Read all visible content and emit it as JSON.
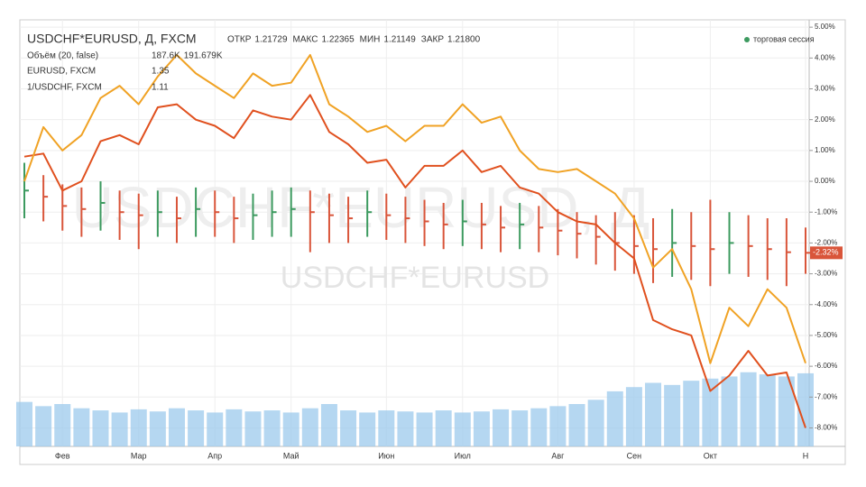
{
  "header": {
    "title": "USDCHF*EURUSD, Д, FXCM",
    "ohlc": [
      {
        "label": "ОТКР",
        "value": "1.21729"
      },
      {
        "label": "МАКС",
        "value": "1.22365"
      },
      {
        "label": "МИН",
        "value": "1.21149"
      },
      {
        "label": "ЗАКР",
        "value": "1.21800"
      }
    ],
    "session": "торговая сессия"
  },
  "chart_data": {
    "type": "ohlc",
    "categories": [
      null,
      null,
      "Фев",
      null,
      null,
      null,
      "Мар",
      null,
      null,
      null,
      "Апр",
      null,
      null,
      null,
      "Май",
      null,
      null,
      null,
      null,
      "Июн",
      null,
      null,
      null,
      "Июл",
      null,
      null,
      null,
      null,
      "Авг",
      null,
      null,
      null,
      "Сен",
      null,
      null,
      null,
      "Окт",
      null,
      null,
      null,
      null,
      "Н"
    ],
    "ylim": [
      -8.6,
      5.15
    ],
    "yticks": [
      {
        "value": 5,
        "label": "5.00%"
      },
      {
        "value": 4,
        "label": "4.00%"
      },
      {
        "value": 3,
        "label": "3.00%"
      },
      {
        "value": 2,
        "label": "2.00%"
      },
      {
        "value": 1,
        "label": "1.00%"
      },
      {
        "value": 0,
        "label": "0.00%"
      },
      {
        "value": -1,
        "label": "-1.00%"
      },
      {
        "value": -2,
        "label": "-2.00%"
      },
      {
        "value": -3,
        "label": "-3.00%"
      },
      {
        "value": -4,
        "label": "-4.00%"
      },
      {
        "value": -5,
        "label": "-5.00%"
      },
      {
        "value": -6,
        "label": "-6.00%"
      },
      {
        "value": -7,
        "label": "-7.00%"
      },
      {
        "value": -8,
        "label": "-8.00%"
      }
    ],
    "grid": true,
    "main": {
      "name": "USDCHF*EURUSD",
      "up_color": "#3c9a5f",
      "down_color": "#d9553a",
      "close": [
        -0.3,
        -0.5,
        -0.8,
        -0.9,
        -0.7,
        -1.0,
        -1.1,
        -1.0,
        -1.2,
        -0.9,
        -1.0,
        -1.2,
        -1.1,
        -1.0,
        -0.9,
        -1.0,
        -1.1,
        -1.2,
        -1.0,
        -1.1,
        -1.2,
        -1.3,
        -1.4,
        -1.3,
        -1.4,
        -1.5,
        -1.4,
        -1.5,
        -1.6,
        -1.7,
        -1.8,
        -2.0,
        -2.1,
        -2.2,
        -2.0,
        -2.1,
        -2.2,
        -2.0,
        -2.1,
        -2.2,
        -2.3,
        -2.32
      ],
      "high": [
        0.6,
        0.2,
        -0.1,
        -0.2,
        0.0,
        -0.3,
        -0.4,
        -0.3,
        -0.5,
        -0.2,
        -0.3,
        -0.5,
        -0.4,
        -0.3,
        -0.2,
        -0.3,
        -0.4,
        -0.5,
        -0.3,
        -0.4,
        -0.5,
        -0.6,
        -0.7,
        -0.6,
        -0.7,
        -0.8,
        -0.7,
        -0.8,
        -0.9,
        -1.0,
        -1.1,
        -1.0,
        -1.1,
        -1.2,
        -0.9,
        -1.0,
        -0.6,
        -1.0,
        -1.1,
        -1.2,
        -1.2,
        -1.5
      ],
      "low": [
        -1.2,
        -1.3,
        -1.6,
        -1.8,
        -1.6,
        -1.9,
        -2.2,
        -1.8,
        -2.0,
        -1.8,
        -1.8,
        -2.0,
        -1.9,
        -1.8,
        -1.8,
        -2.3,
        -2.0,
        -2.0,
        -1.8,
        -1.9,
        -2.0,
        -2.1,
        -2.2,
        -2.1,
        -2.2,
        -2.3,
        -2.2,
        -2.3,
        -2.4,
        -2.5,
        -2.7,
        -2.9,
        -3.0,
        -3.3,
        -3.1,
        -3.2,
        -3.4,
        -3.0,
        -3.1,
        -3.2,
        -3.4,
        -3.0
      ],
      "last": {
        "value": -2.32,
        "label": "-2.32%"
      }
    },
    "series": [
      {
        "name": "EURUSD, FXCM",
        "color": "#e0501e",
        "last_price": 1.35,
        "values": [
          0.8,
          0.9,
          -0.3,
          0.0,
          1.3,
          1.5,
          1.2,
          2.4,
          2.5,
          2.0,
          1.8,
          1.4,
          2.3,
          2.1,
          2.0,
          2.8,
          1.6,
          1.2,
          0.6,
          0.7,
          -0.2,
          0.5,
          0.5,
          1.0,
          0.3,
          0.5,
          -0.2,
          -0.4,
          -1.0,
          -1.3,
          -1.4,
          -2.0,
          -2.5,
          -4.5,
          -4.8,
          -5.0,
          -6.8,
          -6.3,
          -5.5,
          -6.3,
          -6.2,
          -8.0
        ]
      },
      {
        "name": "1/USDCHF, FXCM",
        "color": "#f0a224",
        "last_price": 1.11,
        "values": [
          0.0,
          1.76,
          1.0,
          1.5,
          2.7,
          3.1,
          2.5,
          3.4,
          4.1,
          3.5,
          3.1,
          2.7,
          3.5,
          3.1,
          3.2,
          4.1,
          2.5,
          2.1,
          1.6,
          1.8,
          1.3,
          1.8,
          1.8,
          2.5,
          1.9,
          2.1,
          1.0,
          0.4,
          0.3,
          0.4,
          0.0,
          -0.4,
          -1.2,
          -2.8,
          -2.2,
          -3.5,
          -5.9,
          -4.1,
          -4.7,
          -3.5,
          -4.1,
          -5.9
        ]
      }
    ],
    "volume": {
      "name": "Объём (20, false)",
      "color": "#9cc9ec",
      "readouts": [
        {
          "text": "187.6K",
          "color": "#3c9a5f"
        },
        {
          "text": "191.679K",
          "color": "#2d9be0"
        }
      ],
      "ylim": [
        0,
        2000
      ],
      "values": [
        210,
        190,
        200,
        180,
        170,
        160,
        175,
        165,
        180,
        170,
        160,
        175,
        165,
        170,
        160,
        180,
        200,
        170,
        160,
        170,
        165,
        160,
        170,
        160,
        165,
        175,
        170,
        180,
        190,
        200,
        220,
        260,
        280,
        300,
        290,
        310,
        320,
        330,
        350,
        340,
        330,
        345
      ]
    },
    "watermark": [
      "USDCHF*EURUSD, Д",
      "USDCHF*EURUSD"
    ]
  }
}
